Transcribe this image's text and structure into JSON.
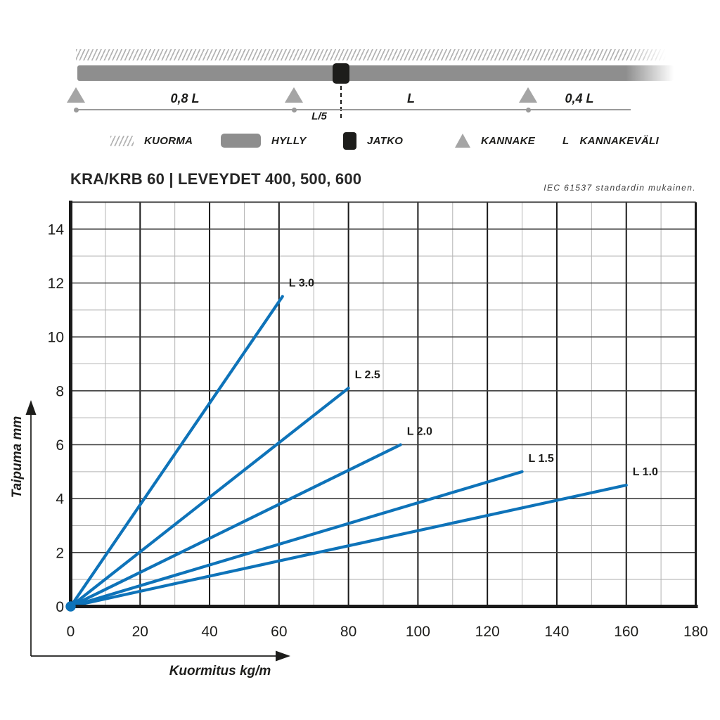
{
  "header": {
    "title": "KRA/KRB 60 | LEVEYDET 400, 500, 600",
    "standard_note": "IEC 61537 standardin mukainen."
  },
  "diagram": {
    "span_labels": {
      "left": "0,8 L",
      "mid": "L",
      "right": "0,4 L",
      "joint": "L/5"
    }
  },
  "legend": {
    "items": [
      {
        "icon": "load-hatch-icon",
        "label": "KUORMA"
      },
      {
        "icon": "shelf-bar-icon",
        "label": "HYLLY"
      },
      {
        "icon": "joint-square-icon",
        "label": "JATKO"
      },
      {
        "icon": "bracket-triangle-icon",
        "label": "KANNAKE"
      },
      {
        "icon": "letter-l-symbol",
        "symbol": "L",
        "label": "KANNAKEVÄLI"
      }
    ]
  },
  "chart_data": {
    "type": "line",
    "title": "KRA/KRB 60 | LEVEYDET 400, 500, 600",
    "xlabel": "Kuormitus kg/m",
    "ylabel": "Taipuma mm",
    "xlim": [
      0,
      180
    ],
    "ylim": [
      0,
      15
    ],
    "x_ticks": [
      0,
      20,
      40,
      60,
      80,
      100,
      120,
      140,
      160,
      180
    ],
    "y_ticks": [
      0,
      2,
      4,
      6,
      8,
      10,
      12,
      14
    ],
    "x_minor_step": 10,
    "y_minor_step": 1,
    "grid": true,
    "legend_position": "end-of-line-labels",
    "line_color": "#0e73b9",
    "series": [
      {
        "name": "L 3.0",
        "x": [
          0,
          61
        ],
        "y": [
          0,
          11.5
        ]
      },
      {
        "name": "L 2.5",
        "x": [
          0,
          80
        ],
        "y": [
          0,
          8.1
        ]
      },
      {
        "name": "L 2.0",
        "x": [
          0,
          95
        ],
        "y": [
          0,
          6.0
        ]
      },
      {
        "name": "L 1.5",
        "x": [
          0,
          130
        ],
        "y": [
          0,
          5.0
        ]
      },
      {
        "name": "L 1.0",
        "x": [
          0,
          160
        ],
        "y": [
          0,
          4.5
        ]
      }
    ]
  },
  "colors": {
    "line_blue": "#0e73b9",
    "ink": "#1d1d1b",
    "bar_gray": "#8e8e8e",
    "support_gray": "#a5a5a5",
    "hatch_gray": "#b3b3b3",
    "grid_minor": "#b3b3b3",
    "grid_major_h": "#3f3f3f",
    "frame_black": "#1a1a1a",
    "note_gray": "#3c3c3c"
  }
}
